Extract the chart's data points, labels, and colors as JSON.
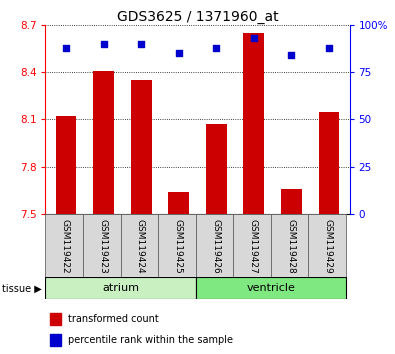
{
  "title": "GDS3625 / 1371960_at",
  "samples": [
    "GSM119422",
    "GSM119423",
    "GSM119424",
    "GSM119425",
    "GSM119426",
    "GSM119427",
    "GSM119428",
    "GSM119429"
  ],
  "red_values": [
    8.12,
    8.41,
    8.35,
    7.64,
    8.07,
    8.65,
    7.66,
    8.15
  ],
  "blue_values": [
    88,
    90,
    90,
    85,
    88,
    93,
    84,
    88
  ],
  "ylim_left": [
    7.5,
    8.7
  ],
  "ylim_right": [
    0,
    100
  ],
  "yticks_left": [
    7.5,
    7.8,
    8.1,
    8.4,
    8.7
  ],
  "yticks_right": [
    0,
    25,
    50,
    75,
    100
  ],
  "ytick_labels_left": [
    "7.5",
    "7.8",
    "8.1",
    "8.4",
    "8.7"
  ],
  "ytick_labels_right": [
    "0",
    "25",
    "50",
    "75",
    "100%"
  ],
  "groups": [
    {
      "label": "atrium",
      "start": 0,
      "end": 3,
      "color": "#c8f0c0"
    },
    {
      "label": "ventricle",
      "start": 4,
      "end": 7,
      "color": "#80e880"
    }
  ],
  "bar_color": "#cc0000",
  "dot_color": "#0000cc",
  "bar_width": 0.55,
  "tissue_label": "tissue ▶",
  "legend_red": "transformed count",
  "legend_blue": "percentile rank within the sample",
  "title_fontsize": 10,
  "tick_label_fontsize": 7.5,
  "sample_fontsize": 6.5,
  "group_fontsize": 8
}
